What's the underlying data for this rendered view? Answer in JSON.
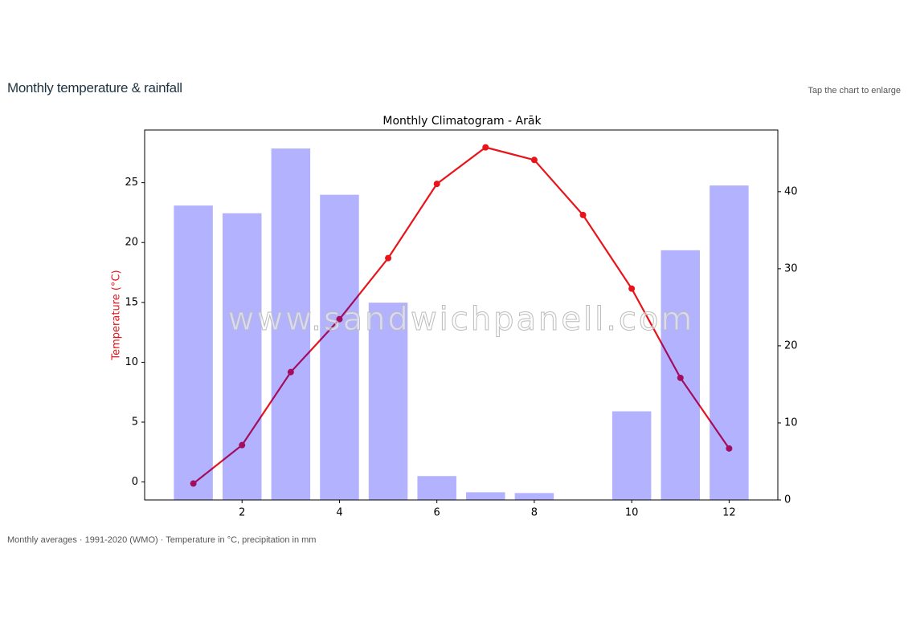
{
  "header": {
    "title": "Monthly temperature & rainfall",
    "hint": "Tap the chart to enlarge"
  },
  "chart_data": {
    "type": "climatogram",
    "title": "Monthly Climatogram - Arāk",
    "ylabel": "Temperature (°C)",
    "ylabel_color": "#e8141a",
    "x": [
      1,
      2,
      3,
      4,
      5,
      6,
      7,
      8,
      9,
      10,
      11,
      12
    ],
    "series": [
      {
        "type": "bar",
        "axis": "y2",
        "color": "#0000ff",
        "alpha": 0.3,
        "width": 0.8,
        "values": [
          38.2,
          37.2,
          45.6,
          39.6,
          25.6,
          3.1,
          1.0,
          0.9,
          0,
          11.5,
          32.4,
          40.8
        ]
      },
      {
        "type": "line",
        "color": "#e8141a",
        "values": [
          -0.13,
          3.08,
          9.18,
          13.6,
          18.7,
          24.9,
          27.95,
          26.9,
          22.3,
          16.15,
          8.7,
          2.8
        ]
      }
    ],
    "xlim": [
      0,
      13
    ],
    "xticks": [
      2,
      4,
      6,
      8,
      10,
      12
    ],
    "ylim": [
      -1.5,
      29.4
    ],
    "yticks": [
      0,
      5,
      10,
      15,
      20,
      25
    ],
    "y2lim": [
      0,
      48
    ],
    "y2ticks": [
      0,
      10,
      20,
      30,
      40
    ],
    "watermark": "www.sandwichpanell.com"
  },
  "footer": {
    "caption": "Monthly averages · 1991-2020 (WMO) · Temperature in °C, precipitation in mm"
  }
}
